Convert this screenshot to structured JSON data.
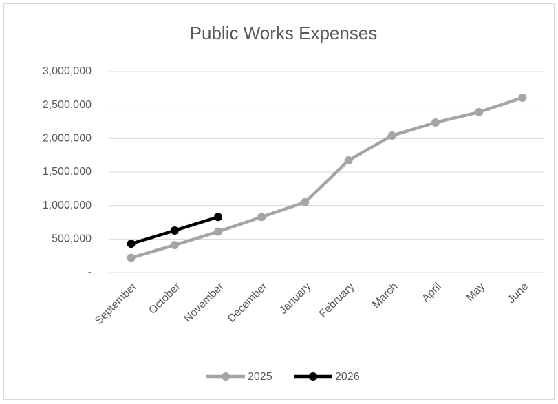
{
  "chart_data": {
    "type": "line",
    "title": "Public Works Expenses",
    "categories": [
      "September",
      "October",
      "November",
      "December",
      "January",
      "February",
      "March",
      "April",
      "May",
      "June"
    ],
    "series": [
      {
        "name": "2025",
        "color": "#a5a5a5",
        "values": [
          220000,
          410000,
          610000,
          830000,
          1050000,
          1675000,
          2045000,
          2240000,
          2395000,
          2610000
        ]
      },
      {
        "name": "2026",
        "color": "#000000",
        "values": [
          430000,
          627000,
          830000,
          null,
          null,
          null,
          null,
          null,
          null,
          null
        ]
      }
    ],
    "ylim": [
      0,
      3000000
    ],
    "yticks": [
      {
        "value": 0,
        "label": "-"
      },
      {
        "value": 500000,
        "label": "500,000"
      },
      {
        "value": 1000000,
        "label": "1,000,000"
      },
      {
        "value": 1500000,
        "label": "1,500,000"
      },
      {
        "value": 2000000,
        "label": "2,000,000"
      },
      {
        "value": 2500000,
        "label": "2,500,000"
      },
      {
        "value": 3000000,
        "label": "3,000,000"
      }
    ],
    "grid": true,
    "legend": "bottom"
  }
}
